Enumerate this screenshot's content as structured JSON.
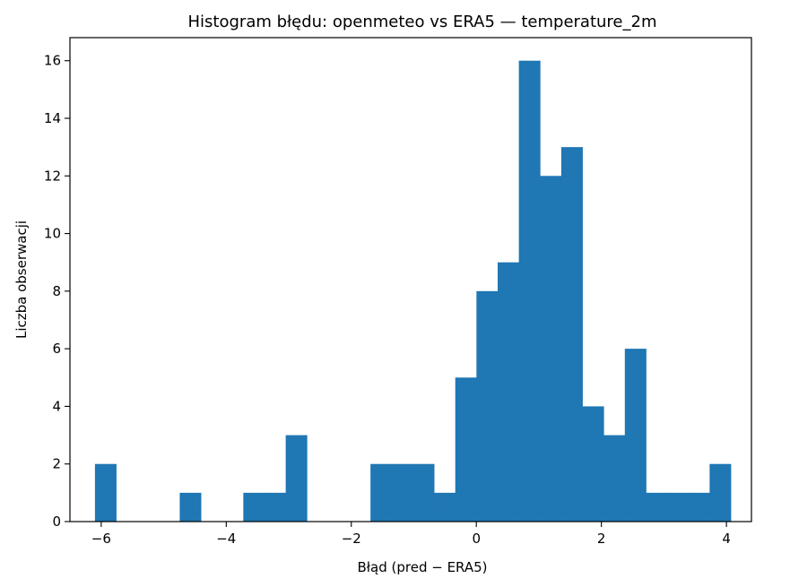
{
  "chart_data": {
    "type": "bar",
    "title": "Histogram błędu: openmeteo vs ERA5 — temperature_2m",
    "xlabel": "Błąd (pred − ERA5)",
    "ylabel": "Liczba obserwacji",
    "bar_color": "#1f77b4",
    "xlim": [
      -6.5,
      4.4
    ],
    "ylim": [
      0,
      16.8
    ],
    "bin_start": -6.1,
    "bin_width": 0.339,
    "values": [
      2,
      0,
      0,
      0,
      1,
      0,
      0,
      1,
      1,
      3,
      0,
      0,
      0,
      2,
      2,
      2,
      1,
      5,
      8,
      9,
      16,
      12,
      13,
      4,
      3,
      6,
      1,
      1,
      1,
      2
    ],
    "xticks": [
      -6,
      -4,
      -2,
      0,
      2,
      4
    ],
    "xtick_labels": [
      "−6",
      "−4",
      "−2",
      "0",
      "2",
      "4"
    ],
    "yticks": [
      0,
      2,
      4,
      6,
      8,
      10,
      12,
      14,
      16
    ],
    "ytick_labels": [
      "0",
      "2",
      "4",
      "6",
      "8",
      "10",
      "12",
      "14",
      "16"
    ],
    "grid": false,
    "legend": "none"
  }
}
